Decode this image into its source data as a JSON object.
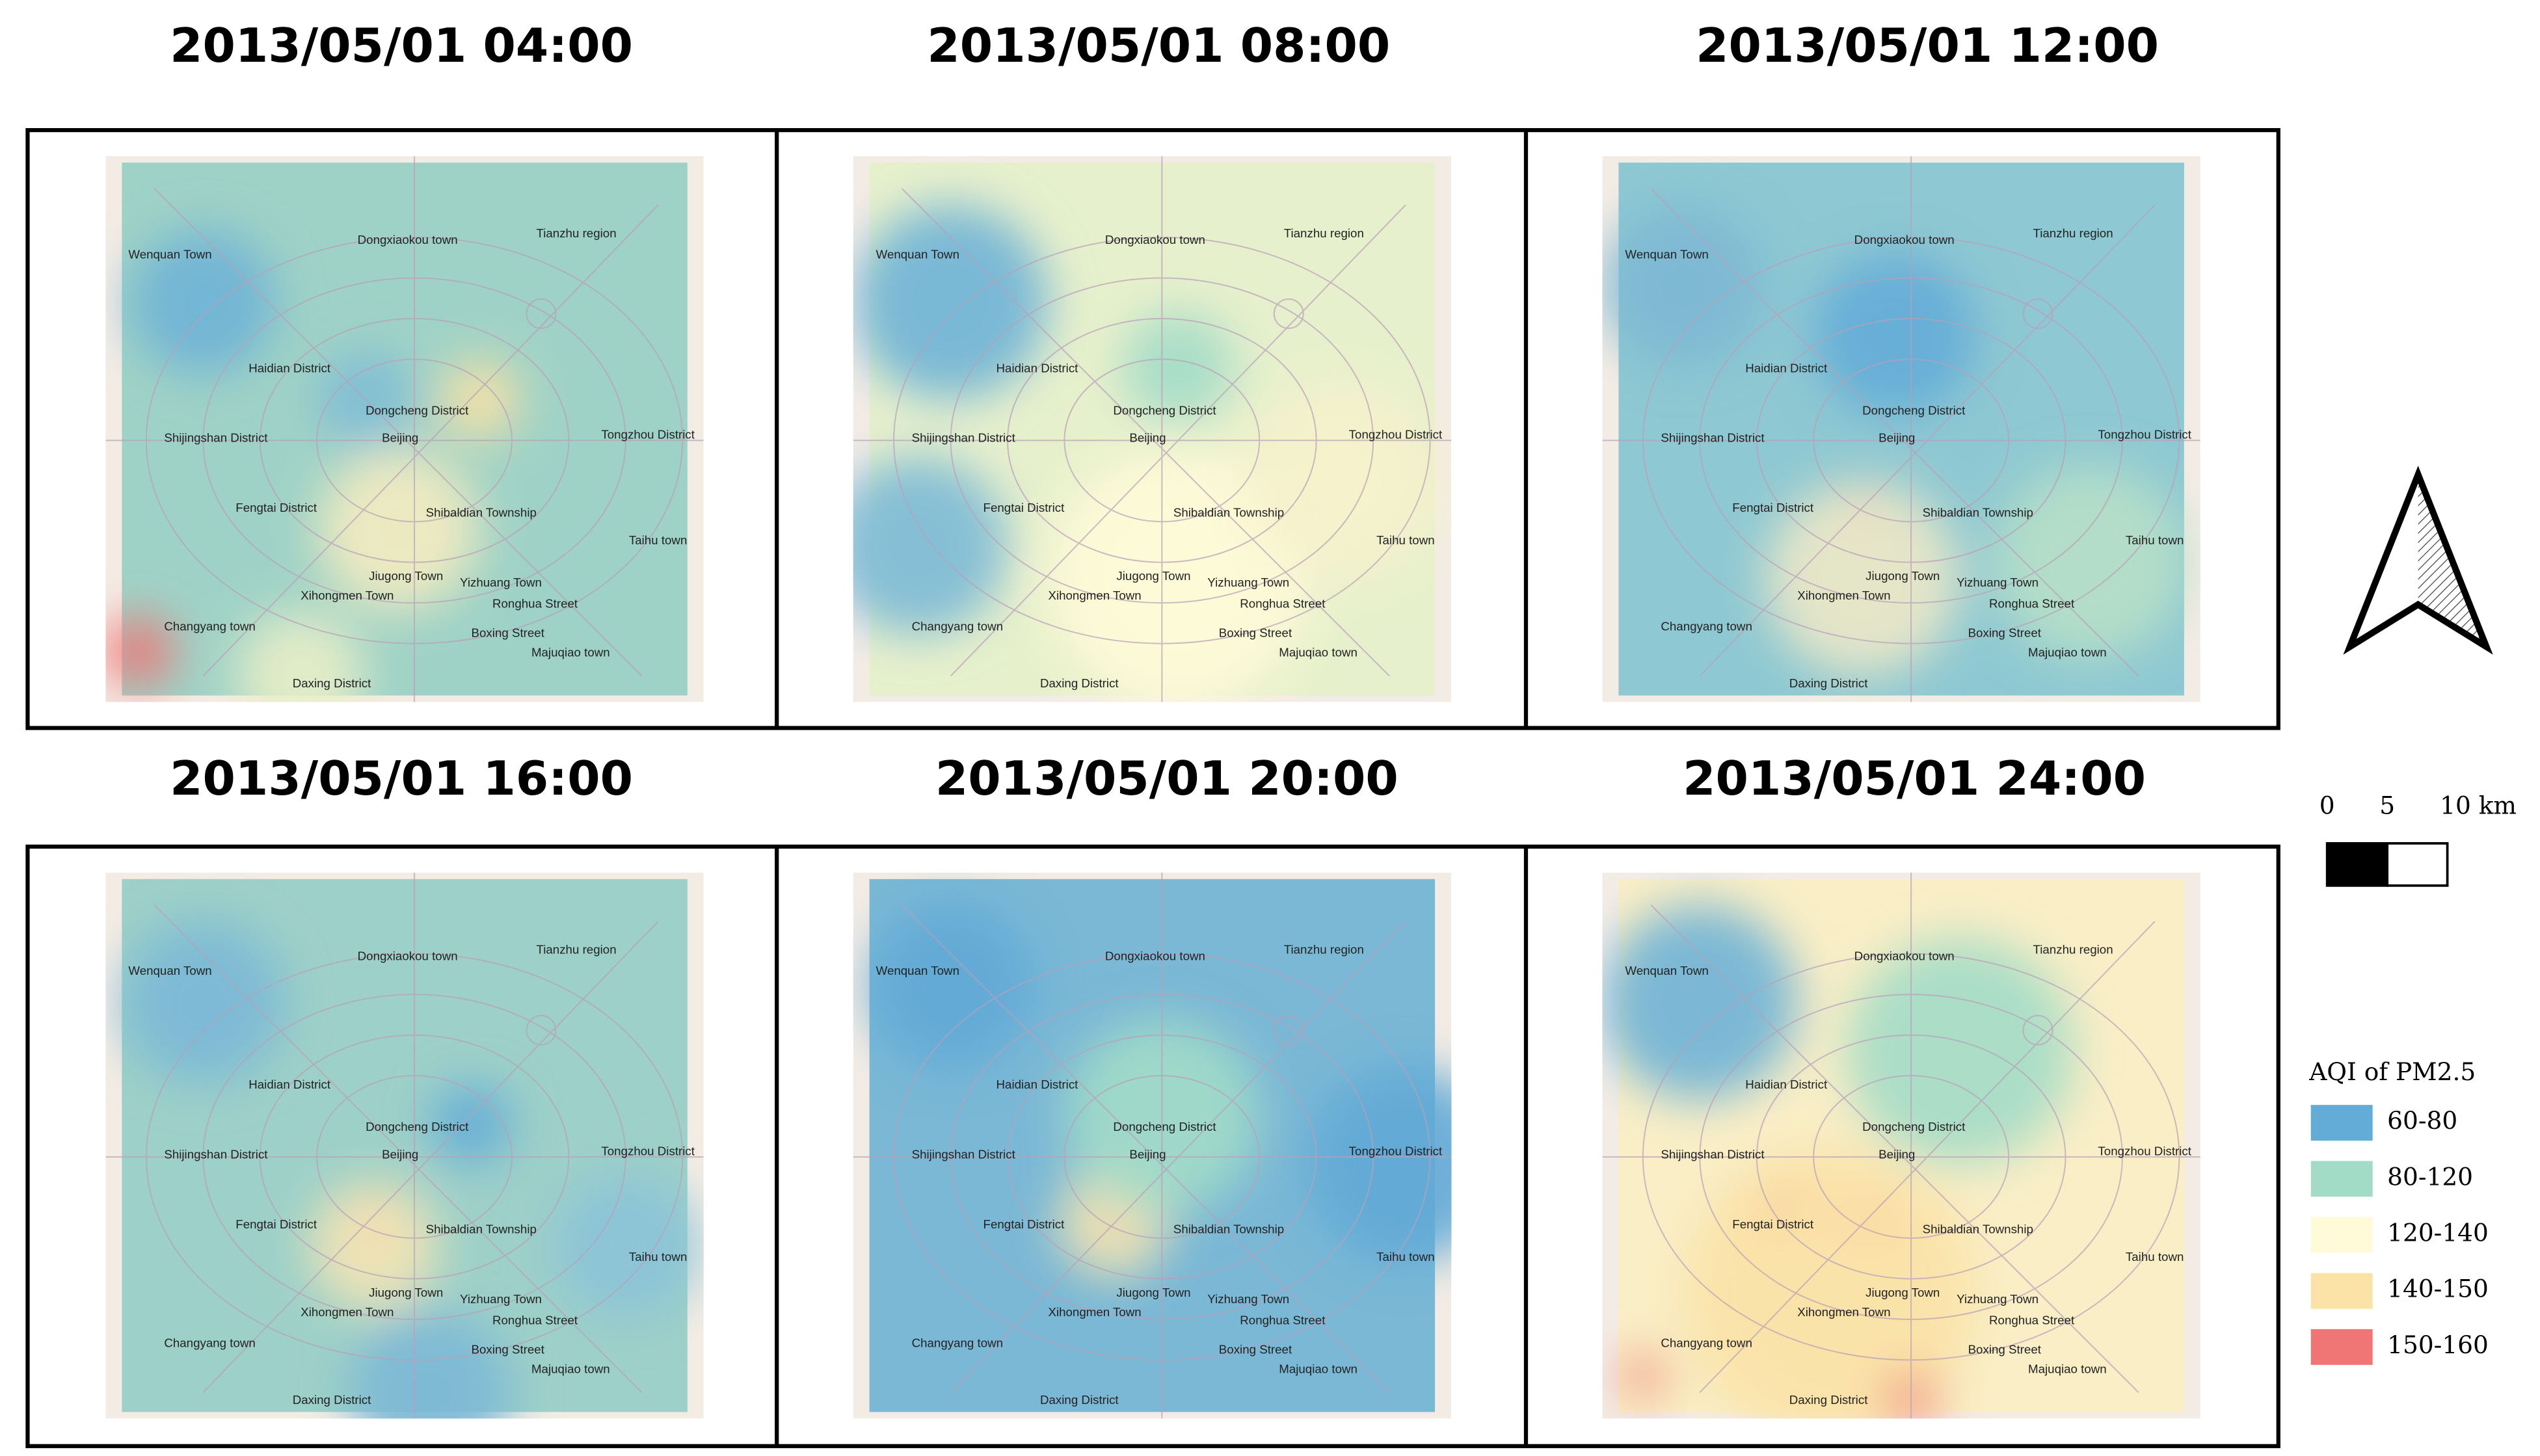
{
  "panels": [
    {
      "title": "2013/05/01 04:00"
    },
    {
      "title": "2013/05/01 08:00"
    },
    {
      "title": "2013/05/01 12:00"
    },
    {
      "title": "2013/05/01 16:00"
    },
    {
      "title": "2013/05/01 20:00"
    },
    {
      "title": "2013/05/01 24:00"
    }
  ],
  "places": [
    "Wenquan Town",
    "Dongxiaokou town",
    "Tianzhu region",
    "Haidian District",
    "Dongcheng District",
    "Beijing",
    "Shijingshan District",
    "Tongzhou District",
    "Fengtai District",
    "Shibaldian Township",
    "Taihu town",
    "Jiugong Town",
    "Yizhuang Town",
    "Xihongmen Town",
    "Ronghua Street",
    "Changyang town",
    "Boxing Street",
    "Majuqiao town",
    "Daxing District"
  ],
  "scale_bar": {
    "labels": [
      "0",
      "5",
      "10 km"
    ]
  },
  "legend": {
    "title": "AQI of PM2.5",
    "items": [
      {
        "label": "60-80",
        "color": "#64acd8"
      },
      {
        "label": "80-120",
        "color": "#a3dcc6"
      },
      {
        "label": "120-140",
        "color": "#fffbd8"
      },
      {
        "label": "140-150",
        "color": "#fbe2a6"
      },
      {
        "label": "150-160",
        "color": "#f07676"
      }
    ]
  }
}
